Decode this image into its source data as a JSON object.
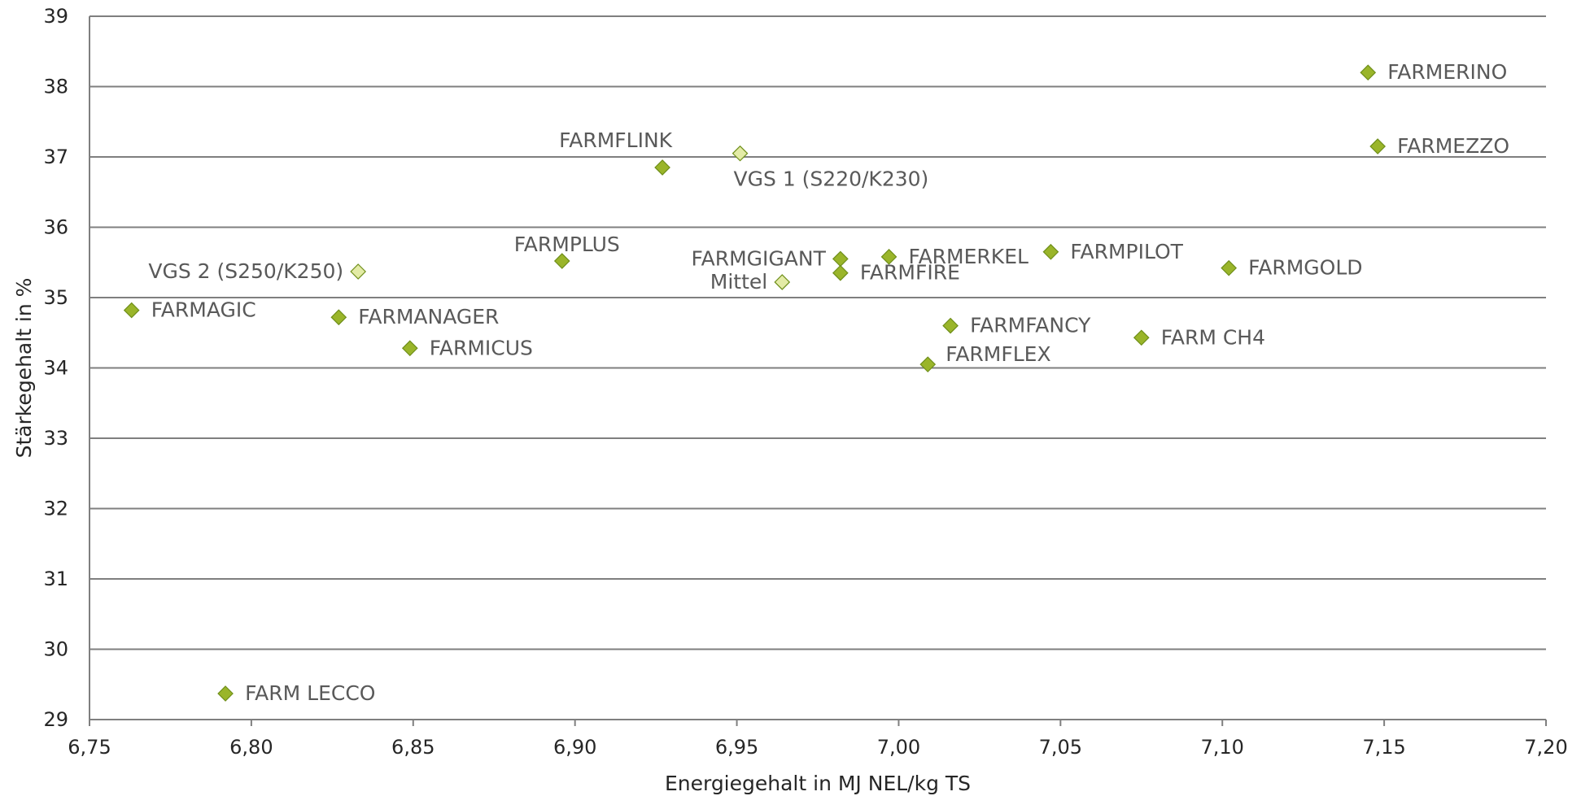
{
  "chart_data": {
    "type": "scatter",
    "title": "",
    "xlabel": "Energiegehalt in MJ NEL/kg TS",
    "ylabel": "Stärkegehalt in %",
    "xlim": [
      6.75,
      7.2
    ],
    "ylim": [
      29,
      39
    ],
    "grid": "horizontal",
    "xticks": [
      "6,75",
      "6,80",
      "6,85",
      "6,90",
      "6,95",
      "7,00",
      "7,05",
      "7,10",
      "7,15",
      "7,20"
    ],
    "yticks": [
      "29",
      "30",
      "31",
      "32",
      "33",
      "34",
      "35",
      "36",
      "37",
      "38",
      "39"
    ],
    "colors": {
      "variety": "#9ab52a",
      "reference": "#e3eba6",
      "marker_border": "#6f8f1a"
    },
    "points": [
      {
        "label": "FARMERINO",
        "x": 7.145,
        "y": 38.2,
        "kind": "variety",
        "label_pos": "right"
      },
      {
        "label": "FARMEZZO",
        "x": 7.148,
        "y": 37.15,
        "kind": "variety",
        "label_pos": "right"
      },
      {
        "label": "FARMFLINK",
        "x": 6.927,
        "y": 36.85,
        "kind": "variety",
        "label_pos": "above-left"
      },
      {
        "label": "VGS 1 (S220/K230)",
        "x": 6.951,
        "y": 37.05,
        "kind": "reference",
        "label_pos": "below"
      },
      {
        "label": "FARMPLUS",
        "x": 6.896,
        "y": 35.52,
        "kind": "variety",
        "label_pos": "above"
      },
      {
        "label": "FARMGIGANT",
        "x": 6.982,
        "y": 35.55,
        "kind": "variety",
        "label_pos": "left"
      },
      {
        "label": "FARMERKEL",
        "x": 6.997,
        "y": 35.58,
        "kind": "variety",
        "label_pos": "right"
      },
      {
        "label": "FARMPILOT",
        "x": 7.047,
        "y": 35.65,
        "kind": "variety",
        "label_pos": "right"
      },
      {
        "label": "FARMGOLD",
        "x": 7.102,
        "y": 35.42,
        "kind": "variety",
        "label_pos": "right"
      },
      {
        "label": "FARMFIRE",
        "x": 6.982,
        "y": 35.35,
        "kind": "variety",
        "label_pos": "right"
      },
      {
        "label": "Mittel",
        "x": 6.964,
        "y": 35.22,
        "kind": "reference",
        "label_pos": "left"
      },
      {
        "label": "VGS 2 (S250/K250)",
        "x": 6.833,
        "y": 35.37,
        "kind": "reference",
        "label_pos": "left"
      },
      {
        "label": "FARMAGIC",
        "x": 6.763,
        "y": 34.82,
        "kind": "variety",
        "label_pos": "right"
      },
      {
        "label": "FARMANAGER",
        "x": 6.827,
        "y": 34.72,
        "kind": "variety",
        "label_pos": "right"
      },
      {
        "label": "FARMICUS",
        "x": 6.849,
        "y": 34.28,
        "kind": "variety",
        "label_pos": "right"
      },
      {
        "label": "FARMFANCY",
        "x": 7.016,
        "y": 34.6,
        "kind": "variety",
        "label_pos": "right"
      },
      {
        "label": "FARM CH4",
        "x": 7.075,
        "y": 34.43,
        "kind": "variety",
        "label_pos": "right"
      },
      {
        "label": "FARMFLEX",
        "x": 7.009,
        "y": 34.05,
        "kind": "variety",
        "label_pos": "above-right"
      },
      {
        "label": "FARM LECCO",
        "x": 6.792,
        "y": 29.37,
        "kind": "variety",
        "label_pos": "right"
      }
    ]
  }
}
